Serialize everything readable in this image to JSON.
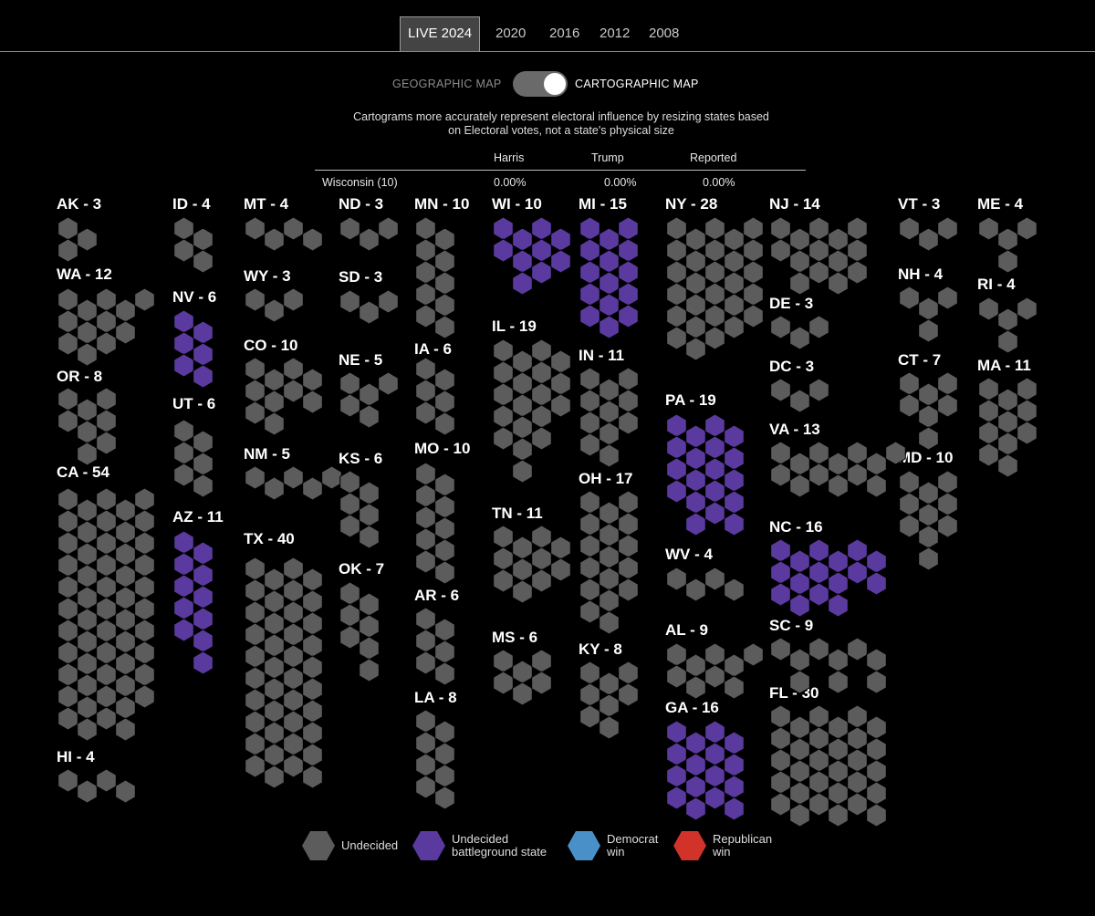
{
  "tabs": [
    "LIVE 2024",
    "2020",
    "2016",
    "2012",
    "2008"
  ],
  "active_tab": "LIVE 2024",
  "toggle": {
    "left_label": "GEOGRAPHIC MAP",
    "right_label": "CARTOGRAPHIC MAP",
    "selected": "CARTOGRAPHIC MAP"
  },
  "caption": {
    "line1": "Cartograms more accurately represent electoral influence by resizing states based",
    "line2": "on Electoral votes, not a state's physical size"
  },
  "results": {
    "headers": {
      "candidate1": "Harris",
      "candidate2": "Trump",
      "reported": "Reported"
    },
    "row": {
      "state": "Wisconsin (10)",
      "harris": "0.00%",
      "trump": "0.00%",
      "reported": "0.00%"
    }
  },
  "colors": {
    "undecided": "#5c5c5c",
    "battleground": "#5a3a9e",
    "democrat": "#4a90c8",
    "republican": "#d1332a"
  },
  "states": [
    {
      "label": "AK - 3",
      "status": "undecided",
      "hexes": 3
    },
    {
      "label": "WA - 12",
      "status": "undecided",
      "hexes": 12
    },
    {
      "label": "OR - 8",
      "status": "undecided",
      "hexes": 8
    },
    {
      "label": "CA - 54",
      "status": "undecided",
      "hexes": 54
    },
    {
      "label": "HI - 4",
      "status": "undecided",
      "hexes": 4
    },
    {
      "label": "ID - 4",
      "status": "undecided",
      "hexes": 4
    },
    {
      "label": "NV - 6",
      "status": "battleground",
      "hexes": 6
    },
    {
      "label": "UT - 6",
      "status": "undecided",
      "hexes": 6
    },
    {
      "label": "AZ - 11",
      "status": "battleground",
      "hexes": 11
    },
    {
      "label": "MT - 4",
      "status": "undecided",
      "hexes": 4
    },
    {
      "label": "WY - 3",
      "status": "undecided",
      "hexes": 3
    },
    {
      "label": "CO - 10",
      "status": "undecided",
      "hexes": 10
    },
    {
      "label": "NM - 5",
      "status": "undecided",
      "hexes": 5
    },
    {
      "label": "TX - 40",
      "status": "undecided",
      "hexes": 40
    },
    {
      "label": "ND - 3",
      "status": "undecided",
      "hexes": 3
    },
    {
      "label": "SD - 3",
      "status": "undecided",
      "hexes": 3
    },
    {
      "label": "NE - 5",
      "status": "undecided",
      "hexes": 5
    },
    {
      "label": "KS - 6",
      "status": "undecided",
      "hexes": 6
    },
    {
      "label": "OK - 7",
      "status": "undecided",
      "hexes": 7
    },
    {
      "label": "MN - 10",
      "status": "undecided",
      "hexes": 10
    },
    {
      "label": "IA - 6",
      "status": "undecided",
      "hexes": 6
    },
    {
      "label": "MO - 10",
      "status": "undecided",
      "hexes": 10
    },
    {
      "label": "AR - 6",
      "status": "undecided",
      "hexes": 6
    },
    {
      "label": "LA - 8",
      "status": "undecided",
      "hexes": 8
    },
    {
      "label": "WI - 10",
      "status": "battleground",
      "hexes": 10
    },
    {
      "label": "IL - 19",
      "status": "undecided",
      "hexes": 19
    },
    {
      "label": "TN - 11",
      "status": "undecided",
      "hexes": 11
    },
    {
      "label": "MS - 6",
      "status": "undecided",
      "hexes": 6
    },
    {
      "label": "MI - 15",
      "status": "battleground",
      "hexes": 15
    },
    {
      "label": "IN - 11",
      "status": "undecided",
      "hexes": 11
    },
    {
      "label": "OH - 17",
      "status": "undecided",
      "hexes": 17
    },
    {
      "label": "KY - 8",
      "status": "undecided",
      "hexes": 8
    },
    {
      "label": "NY - 28",
      "status": "undecided",
      "hexes": 28
    },
    {
      "label": "PA - 19",
      "status": "battleground",
      "hexes": 19
    },
    {
      "label": "WV - 4",
      "status": "undecided",
      "hexes": 4
    },
    {
      "label": "AL - 9",
      "status": "undecided",
      "hexes": 9
    },
    {
      "label": "GA - 16",
      "status": "battleground",
      "hexes": 16
    },
    {
      "label": "NJ - 14",
      "status": "undecided",
      "hexes": 14
    },
    {
      "label": "DE - 3",
      "status": "undecided",
      "hexes": 3
    },
    {
      "label": "DC - 3",
      "status": "undecided",
      "hexes": 3
    },
    {
      "label": "VA - 13",
      "status": "undecided",
      "hexes": 13
    },
    {
      "label": "NC - 16",
      "status": "battleground",
      "hexes": 16
    },
    {
      "label": "SC - 9",
      "status": "undecided",
      "hexes": 9
    },
    {
      "label": "FL - 30",
      "status": "undecided",
      "hexes": 30
    },
    {
      "label": "VT - 3",
      "status": "undecided",
      "hexes": 3
    },
    {
      "label": "NH - 4",
      "status": "undecided",
      "hexes": 4
    },
    {
      "label": "CT - 7",
      "status": "undecided",
      "hexes": 7
    },
    {
      "label": "MD - 10",
      "status": "undecided",
      "hexes": 10
    },
    {
      "label": "ME - 4",
      "status": "undecided",
      "hexes": 4
    },
    {
      "label": "RI - 4",
      "status": "undecided",
      "hexes": 4
    },
    {
      "label": "MA - 11",
      "status": "undecided",
      "hexes": 11
    }
  ],
  "legend": [
    {
      "line1": "Undecided",
      "line2": "",
      "status": "undecided"
    },
    {
      "line1": "Undecided",
      "line2": "battleground state",
      "status": "battleground"
    },
    {
      "line1": "Democrat",
      "line2": "win",
      "status": "democrat"
    },
    {
      "line1": "Republican",
      "line2": "win",
      "status": "republican"
    }
  ]
}
